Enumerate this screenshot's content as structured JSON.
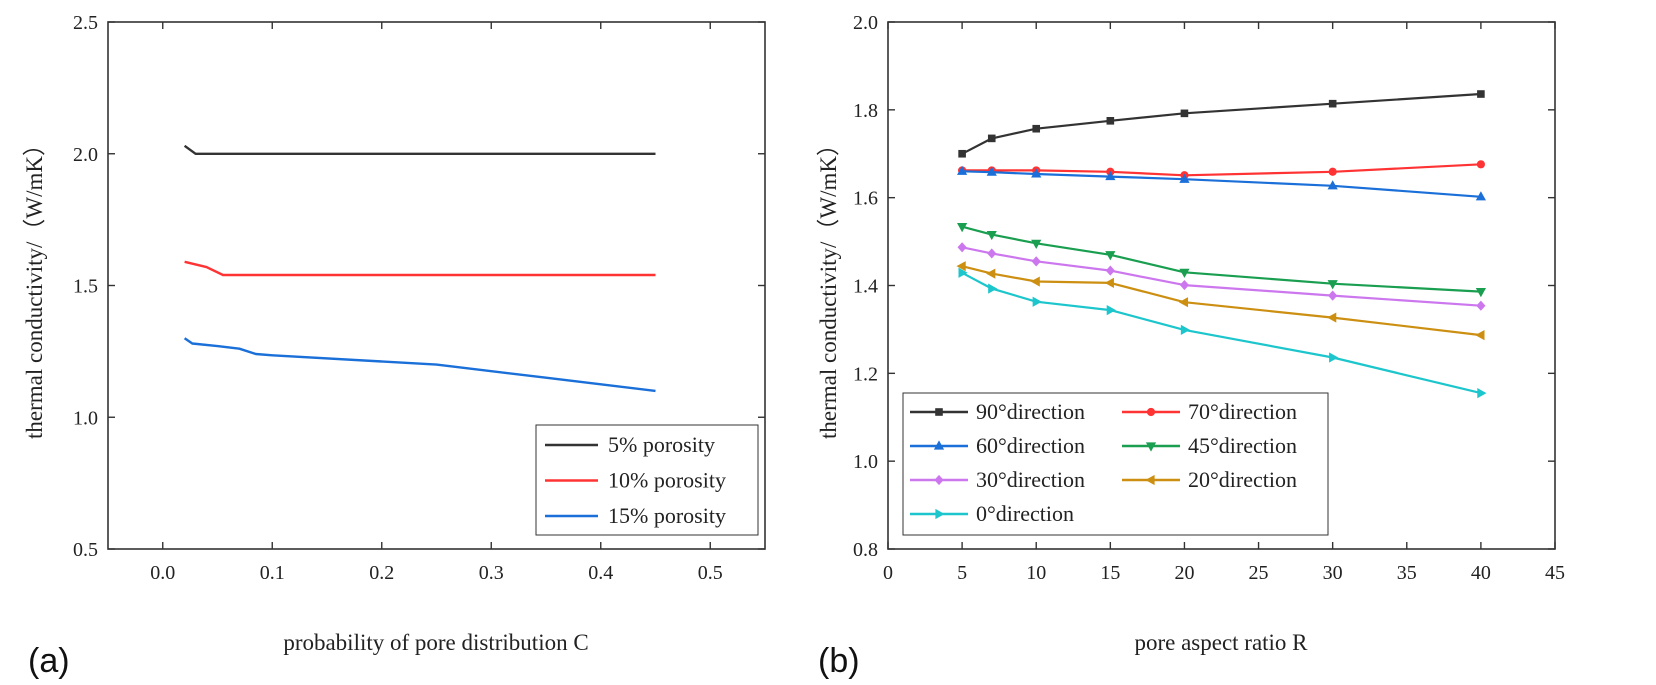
{
  "chart_data": [
    {
      "panel_label": "(a)",
      "type": "line",
      "xlabel": "probability of pore distribution C",
      "ylabel": "thermal conductivity/（W/mK）",
      "xlim": [
        -0.05,
        0.55
      ],
      "ylim": [
        0.5,
        2.5
      ],
      "xticks": [
        0.0,
        0.1,
        0.2,
        0.3,
        0.4,
        0.5
      ],
      "xtick_labels": [
        "0.0",
        "0.1",
        "0.2",
        "0.3",
        "0.4",
        "0.5"
      ],
      "yticks": [
        0.5,
        1.0,
        1.5,
        2.0,
        2.5
      ],
      "ytick_labels": [
        "0.5",
        "1.0",
        "1.5",
        "2.0",
        "2.5"
      ],
      "grid": false,
      "legend_position": "bottom-right",
      "series": [
        {
          "name": "5%  porosity",
          "color": "#333333",
          "x": [
            0.02,
            0.03,
            0.45
          ],
          "y": [
            2.03,
            2.0,
            2.0
          ]
        },
        {
          "name": "10% porosity",
          "color": "#ff3333",
          "x": [
            0.02,
            0.04,
            0.055,
            0.45
          ],
          "y": [
            1.59,
            1.57,
            1.54,
            1.54
          ]
        },
        {
          "name": "15% porosity",
          "color": "#1a6fd8",
          "x": [
            0.02,
            0.027,
            0.05,
            0.07,
            0.085,
            0.1,
            0.25,
            0.35,
            0.45
          ],
          "y": [
            1.3,
            1.28,
            1.27,
            1.26,
            1.24,
            1.235,
            1.2,
            1.15,
            1.1
          ]
        }
      ]
    },
    {
      "panel_label": "(b)",
      "type": "line",
      "xlabel": "pore aspect ratio R",
      "ylabel": "thermal conductivity/（W/mK）",
      "xlim": [
        0,
        45
      ],
      "ylim": [
        0.8,
        2.0
      ],
      "xticks": [
        0,
        5,
        10,
        15,
        20,
        25,
        30,
        35,
        40,
        45
      ],
      "xtick_labels": [
        "0",
        "5",
        "10",
        "15",
        "20",
        "25",
        "30",
        "35",
        "40",
        "45"
      ],
      "yticks": [
        0.8,
        1.0,
        1.2,
        1.4,
        1.6,
        1.8,
        2.0
      ],
      "ytick_labels": [
        "0.8",
        "1.0",
        "1.2",
        "1.4",
        "1.6",
        "1.8",
        "2.0"
      ],
      "grid": false,
      "legend_position": "bottom-left",
      "x": [
        5,
        7,
        10,
        15,
        20,
        30,
        40
      ],
      "series": [
        {
          "name": "90°direction",
          "color": "#333333",
          "marker": "square",
          "values": [
            1.7,
            1.735,
            1.757,
            1.775,
            1.792,
            1.814,
            1.836
          ]
        },
        {
          "name": "70°direction",
          "color": "#ff3333",
          "marker": "circle",
          "values": [
            1.662,
            1.662,
            1.662,
            1.659,
            1.651,
            1.659,
            1.676
          ]
        },
        {
          "name": "60°direction",
          "color": "#1a6fd8",
          "marker": "triangle-up",
          "values": [
            1.66,
            1.658,
            1.654,
            1.648,
            1.642,
            1.627,
            1.602
          ]
        },
        {
          "name": "45°direction",
          "color": "#1a9e50",
          "marker": "triangle-down",
          "values": [
            1.534,
            1.516,
            1.496,
            1.47,
            1.43,
            1.404,
            1.386
          ]
        },
        {
          "name": "30°direction",
          "color": "#cc77ee",
          "marker": "diamond",
          "values": [
            1.487,
            1.473,
            1.455,
            1.434,
            1.401,
            1.377,
            1.354
          ]
        },
        {
          "name": "20°direction",
          "color": "#cc8f11",
          "marker": "triangle-left",
          "values": [
            1.444,
            1.427,
            1.409,
            1.406,
            1.362,
            1.327,
            1.287
          ]
        },
        {
          "name": " 0°direction",
          "color": "#1cc6cc",
          "marker": "triangle-right",
          "values": [
            1.429,
            1.393,
            1.363,
            1.344,
            1.299,
            1.236,
            1.155
          ]
        }
      ]
    }
  ]
}
